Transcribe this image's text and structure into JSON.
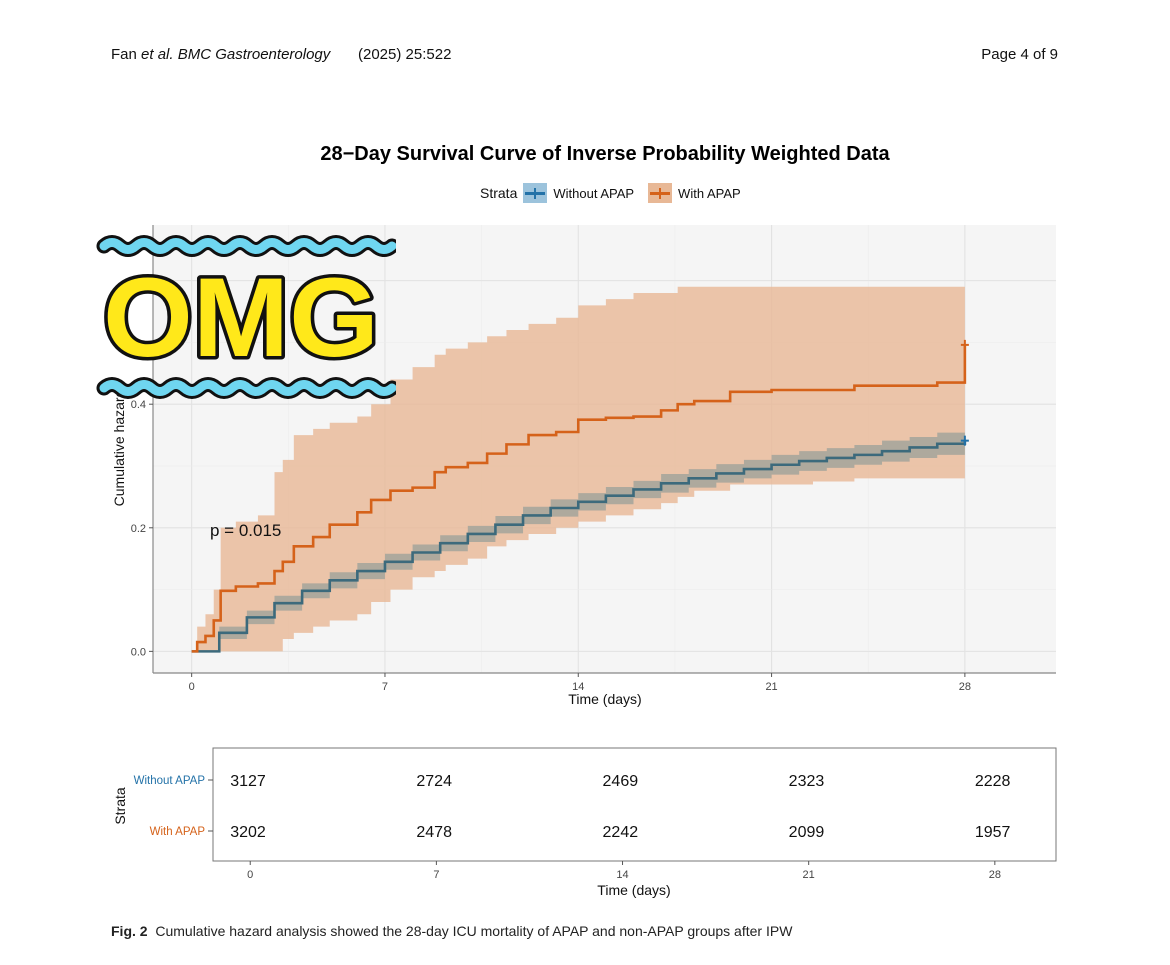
{
  "header": {
    "journal_prefix": "Fan ",
    "journal_italic": "et al. BMC Gastroenterology",
    "year_volume": "(2025) 25:522",
    "page": "Page 4 of 9"
  },
  "figure": {
    "title": "28−Day Survival Curve of Inverse Probability Weighted Data",
    "caption_label": "Fig. 2",
    "caption_text": "Cumulative hazard analysis showed the 28-day ICU mortality of APAP and non-APAP groups after IPW",
    "p_value_label": "p = 0.015",
    "sticker_text": "OMG"
  },
  "colors": {
    "without": "#2372a8",
    "without_band": "#9cc3dc",
    "with": "#d5621a",
    "with_band": "#e8b896",
    "overlay_line": "#3c6a7c",
    "overlay_band": "#a3a59b",
    "panel_bg": "#f5f5f5",
    "sticker_fill": "#ffe81a",
    "wave": "#6fd6f0"
  },
  "chart_data": [
    {
      "type": "line",
      "title": "28−Day Survival Curve of Inverse Probability Weighted Data",
      "xlabel": "Time (days)",
      "ylabel": "Cumulative hazard",
      "xlim": [
        -1.4,
        31.3
      ],
      "ylim": [
        -0.035,
        0.69
      ],
      "x_ticks": [
        0,
        7,
        14,
        21,
        28
      ],
      "y_ticks": [
        0.0,
        0.2,
        0.4
      ],
      "y_tick_labels": [
        "0.0",
        "0.2",
        "0.4"
      ],
      "grid": true,
      "legend_title": "Strata",
      "legend_position": "top",
      "series": [
        {
          "name": "Without APAP",
          "x": [
            0,
            1,
            2,
            3,
            4,
            5,
            6,
            7,
            8,
            9,
            10,
            11,
            12,
            13,
            14,
            15,
            16,
            17,
            18,
            19,
            20,
            21,
            22,
            23,
            24,
            25,
            26,
            27,
            28
          ],
          "y": [
            0.0,
            0.03,
            0.055,
            0.078,
            0.098,
            0.115,
            0.13,
            0.145,
            0.16,
            0.175,
            0.19,
            0.205,
            0.22,
            0.232,
            0.242,
            0.252,
            0.262,
            0.272,
            0.28,
            0.288,
            0.295,
            0.302,
            0.308,
            0.313,
            0.318,
            0.324,
            0.33,
            0.336,
            0.341
          ],
          "lower": [
            0.0,
            0.02,
            0.044,
            0.066,
            0.086,
            0.102,
            0.117,
            0.132,
            0.147,
            0.162,
            0.177,
            0.191,
            0.206,
            0.218,
            0.228,
            0.238,
            0.248,
            0.257,
            0.265,
            0.273,
            0.28,
            0.286,
            0.292,
            0.297,
            0.302,
            0.307,
            0.313,
            0.318,
            0.322
          ],
          "upper": [
            0.0,
            0.04,
            0.066,
            0.09,
            0.11,
            0.128,
            0.143,
            0.158,
            0.173,
            0.188,
            0.203,
            0.219,
            0.234,
            0.246,
            0.256,
            0.266,
            0.276,
            0.287,
            0.295,
            0.303,
            0.31,
            0.318,
            0.324,
            0.329,
            0.334,
            0.341,
            0.347,
            0.354,
            0.36
          ]
        },
        {
          "name": "With APAP",
          "x": [
            0,
            0.2,
            0.5,
            0.8,
            1.05,
            1.6,
            2.4,
            3.0,
            3.3,
            3.7,
            4.4,
            5.0,
            6.0,
            6.5,
            7.2,
            8.0,
            8.8,
            9.2,
            10.0,
            10.7,
            11.4,
            12.2,
            13.2,
            14.0,
            15.0,
            16.0,
            17.0,
            17.6,
            18.2,
            19.5,
            21.0,
            22.5,
            24.0,
            25.5,
            27.0,
            28.0
          ],
          "y": [
            0.0,
            0.015,
            0.025,
            0.05,
            0.098,
            0.105,
            0.11,
            0.13,
            0.145,
            0.17,
            0.185,
            0.205,
            0.225,
            0.245,
            0.26,
            0.265,
            0.29,
            0.298,
            0.305,
            0.32,
            0.335,
            0.35,
            0.355,
            0.375,
            0.378,
            0.38,
            0.39,
            0.4,
            0.405,
            0.42,
            0.423,
            0.423,
            0.43,
            0.43,
            0.435,
            0.496
          ],
          "lower": [
            0.0,
            0.0,
            0.0,
            0.0,
            0.0,
            0.0,
            0.0,
            0.0,
            0.02,
            0.03,
            0.04,
            0.05,
            0.06,
            0.08,
            0.1,
            0.12,
            0.13,
            0.14,
            0.15,
            0.17,
            0.18,
            0.19,
            0.2,
            0.21,
            0.22,
            0.23,
            0.24,
            0.25,
            0.26,
            0.27,
            0.27,
            0.275,
            0.28,
            0.28,
            0.28,
            0.28
          ],
          "upper": [
            0.0,
            0.04,
            0.06,
            0.1,
            0.2,
            0.21,
            0.22,
            0.29,
            0.31,
            0.35,
            0.36,
            0.37,
            0.38,
            0.4,
            0.44,
            0.46,
            0.48,
            0.49,
            0.5,
            0.51,
            0.52,
            0.53,
            0.54,
            0.56,
            0.57,
            0.58,
            0.58,
            0.59,
            0.59,
            0.59,
            0.59,
            0.59,
            0.59,
            0.59,
            0.59,
            0.67
          ]
        }
      ]
    },
    {
      "type": "table",
      "title": "",
      "xlabel": "Time (days)",
      "ylabel": "Strata",
      "x_ticks": [
        0,
        7,
        14,
        21,
        28
      ],
      "rows": [
        {
          "name": "Without APAP",
          "values": [
            "3127",
            "2724",
            "2469",
            "2323",
            "2228"
          ]
        },
        {
          "name": "With APAP",
          "values": [
            "3202",
            "2478",
            "2242",
            "2099",
            "1957"
          ]
        }
      ]
    }
  ]
}
